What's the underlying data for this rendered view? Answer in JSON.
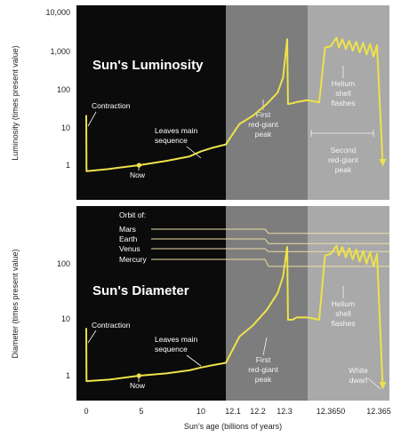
{
  "colors": {
    "background": "#ffffff",
    "black_region": "#0b0b0b",
    "gray_region_1": "#7d7d7d",
    "gray_region_2": "#a9a9a9",
    "curve": "#eee24a",
    "orbit_line": "#ecdfa5"
  },
  "xaxis": {
    "label": "Sun's age (billions of years)",
    "ticks": [
      "0",
      "5",
      "10",
      "12.1",
      "12.2",
      "12.3",
      "12.3650",
      "12.365"
    ]
  },
  "luminosity_panel": {
    "title": "Sun's Luminosity",
    "ylabel": "Luminosity (times present value)",
    "yticks": [
      "10,000",
      "1,000",
      "100",
      "10",
      "1"
    ],
    "annotations": {
      "contraction": "Contraction",
      "leaves_main_sequence_1": "Leaves main",
      "leaves_main_sequence_2": "sequence",
      "now": "Now",
      "first_peak_1": "First",
      "first_peak_2": "red-giant",
      "first_peak_3": "peak",
      "helium_1": "Helium",
      "helium_2": "shell",
      "helium_3": "flashes",
      "second_peak_1": "Second",
      "second_peak_2": "red-giant",
      "second_peak_3": "peak"
    }
  },
  "diameter_panel": {
    "title": "Sun's Diameter",
    "ylabel": "Diameter (times present value)",
    "yticks": [
      "100",
      "10",
      "1"
    ],
    "orbit_header": "Orbit of:",
    "orbits": [
      "Mars",
      "Earth",
      "Venus",
      "Mercury"
    ],
    "annotations": {
      "contraction": "Contraction",
      "leaves_main_sequence_1": "Leaves main",
      "leaves_main_sequence_2": "sequence",
      "now": "Now",
      "first_peak_1": "First",
      "first_peak_2": "red-giant",
      "first_peak_3": "peak",
      "helium_1": "Helium",
      "helium_2": "shell",
      "helium_3": "flashes",
      "white_dwarf_1": "White",
      "white_dwarf_2": "dwarf"
    }
  },
  "chart_data": [
    {
      "type": "line",
      "title": "Sun's Luminosity",
      "xlabel": "Sun's age (billions of years)",
      "ylabel": "Luminosity (times present value)",
      "yscale": "log",
      "ylim": [
        0.5,
        10000
      ],
      "x_ticks": [
        "0",
        "5",
        "10",
        "12.1",
        "12.2",
        "12.3",
        "12.3650",
        "12.365"
      ],
      "series": [
        {
          "values": [
            [
              0,
              20
            ],
            [
              0.02,
              0.7
            ],
            [
              2,
              0.8
            ],
            [
              4.6,
              1.0
            ],
            [
              7,
              1.3
            ],
            [
              9,
              1.7
            ],
            [
              10,
              2.3
            ],
            [
              11,
              2.9
            ],
            [
              12.0,
              3.5
            ],
            [
              12.05,
              12
            ],
            [
              12.1,
              20
            ],
            [
              12.15,
              40
            ],
            [
              12.19,
              80
            ],
            [
              12.21,
              200
            ],
            [
              12.225,
              2000
            ],
            [
              12.228,
              40
            ],
            [
              12.245,
              42
            ],
            [
              12.26,
              45
            ],
            [
              12.295,
              50
            ],
            [
              12.3,
              50
            ],
            [
              12.31,
              44
            ],
            [
              12.315,
              1200
            ],
            [
              12.32,
              1300
            ],
            [
              12.325,
              2200
            ],
            [
              12.327,
              1200
            ],
            [
              12.33,
              2000
            ],
            [
              12.333,
              1100
            ],
            [
              12.336,
              1800
            ],
            [
              12.339,
              1000
            ],
            [
              12.342,
              1700
            ],
            [
              12.345,
              900
            ],
            [
              12.348,
              1600
            ],
            [
              12.351,
              800
            ],
            [
              12.354,
              1500
            ],
            [
              12.357,
              700
            ],
            [
              12.36,
              1400
            ],
            [
              12.365,
              1
            ]
          ]
        }
      ]
    },
    {
      "type": "line",
      "title": "Sun's Diameter",
      "xlabel": "Sun's age (billions of years)",
      "ylabel": "Diameter (times present value)",
      "yscale": "log",
      "ylim": [
        0.5,
        400
      ],
      "x_ticks": [
        "0",
        "5",
        "10",
        "12.1",
        "12.2",
        "12.3",
        "12.3650",
        "12.365"
      ],
      "orbit_levels": [
        {
          "name": "Mars",
          "value": 350
        },
        {
          "name": "Earth",
          "value": 230
        },
        {
          "name": "Venus",
          "value": 165
        },
        {
          "name": "Mercury",
          "value": 90
        }
      ],
      "series": [
        {
          "values": [
            [
              0,
              7
            ],
            [
              0.02,
              0.8
            ],
            [
              2,
              0.85
            ],
            [
              4.6,
              1.0
            ],
            [
              7,
              1.1
            ],
            [
              9,
              1.25
            ],
            [
              10,
              1.4
            ],
            [
              11,
              1.55
            ],
            [
              12.0,
              1.7
            ],
            [
              12.05,
              5
            ],
            [
              12.1,
              8
            ],
            [
              12.15,
              15
            ],
            [
              12.19,
              30
            ],
            [
              12.21,
              60
            ],
            [
              12.225,
              200
            ],
            [
              12.228,
              10
            ],
            [
              12.245,
              10
            ],
            [
              12.26,
              11
            ],
            [
              12.295,
              11
            ],
            [
              12.3,
              11
            ],
            [
              12.31,
              10
            ],
            [
              12.315,
              140
            ],
            [
              12.32,
              150
            ],
            [
              12.325,
              210
            ],
            [
              12.327,
              140
            ],
            [
              12.33,
              200
            ],
            [
              12.333,
              130
            ],
            [
              12.336,
              190
            ],
            [
              12.339,
              120
            ],
            [
              12.342,
              180
            ],
            [
              12.345,
              110
            ],
            [
              12.348,
              170
            ],
            [
              12.351,
              100
            ],
            [
              12.354,
              160
            ],
            [
              12.357,
              90
            ],
            [
              12.36,
              150
            ],
            [
              12.365,
              0.6
            ]
          ]
        }
      ]
    }
  ]
}
